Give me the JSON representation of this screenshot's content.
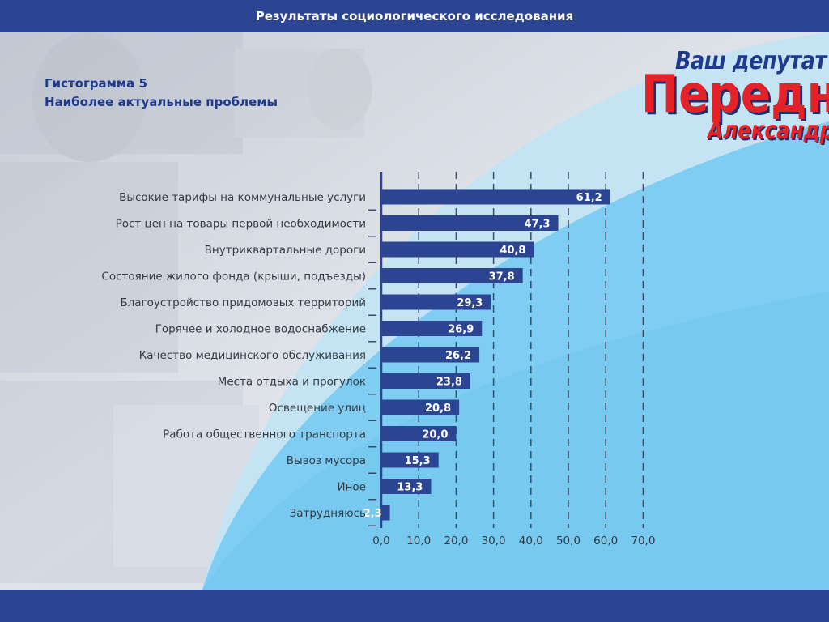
{
  "header": {
    "title": "Результаты социологического исследования"
  },
  "subtitle": {
    "line1": "Гистограмма 5",
    "line2": "Наиболее актуальные проблемы"
  },
  "logo": {
    "line1": "Ваш депутат",
    "line2": "Передня",
    "line3": "Александр"
  },
  "colors": {
    "bar_fill": "#2b4592",
    "header_bg": "#2b4592",
    "logo_red": "#e52227",
    "logo_blue": "#1d3a8e",
    "wave_light": "#c4e3f3",
    "wave_mid": "#7fcdf2"
  },
  "chart_data": {
    "type": "bar",
    "orientation": "horizontal",
    "categories": [
      "Высокие тарифы на коммунальные услуги",
      "Рост цен на товары первой необходимости",
      "Внутриквартальные дороги",
      "Состояние жилого фонда (крыши, подъезды)",
      "Благоустройство придомовых территорий",
      "Горячее и холодное водоснабжение",
      "Качество медицинского обслуживания",
      "Места отдыха и прогулок",
      "Освещение улиц",
      "Работа общественного транспорта",
      "Вывоз мусора",
      "Иное",
      "Затрудняюсь"
    ],
    "values": [
      61.2,
      47.3,
      40.8,
      37.8,
      29.3,
      26.9,
      26.2,
      23.8,
      20.8,
      20.0,
      15.3,
      13.3,
      2.3
    ],
    "value_labels": [
      "61,2",
      "47,3",
      "40,8",
      "37,8",
      "29,3",
      "26,9",
      "26,2",
      "23,8",
      "20,8",
      "20,0",
      "15,3",
      "13,3",
      "2,3"
    ],
    "ticks": [
      0,
      10,
      20,
      30,
      40,
      50,
      60,
      70
    ],
    "tick_labels": [
      "0,0",
      "10,0",
      "20,0",
      "30,0",
      "40,0",
      "50,0",
      "60,0",
      "70,0"
    ],
    "xlim": [
      0,
      70
    ],
    "grid": true,
    "grid_style": "dashed vertical"
  }
}
